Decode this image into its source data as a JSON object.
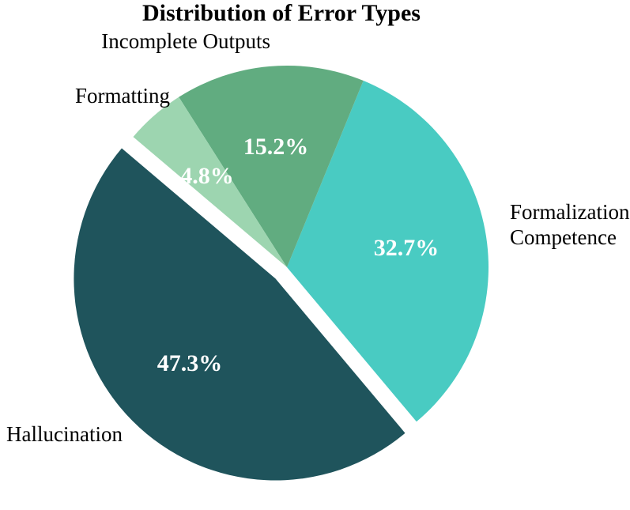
{
  "chart_data": {
    "type": "pie",
    "title": "Distribution of Error Types",
    "direction": "counterclockwise",
    "start_angle_deg": -50,
    "pct_distance": 0.6,
    "background_color": "#FFFFFF",
    "pct_text_color": "#FFFFFF",
    "label_text_color": "#000000",
    "slices": [
      {
        "label": "Formalization Competence",
        "value": 32.7,
        "pct_label": "32.7%",
        "color": "#49CBC2",
        "explode": 0
      },
      {
        "label": "Incomplete Outputs",
        "value": 15.2,
        "pct_label": "15.2%",
        "color": "#61AC80",
        "explode": 0
      },
      {
        "label": "Formatting",
        "value": 4.8,
        "pct_label": "4.8%",
        "color": "#9DD5B0",
        "explode": 0
      },
      {
        "label": "Hallucination",
        "value": 47.3,
        "pct_label": "47.3%",
        "color": "#1F545C",
        "explode": 0.08
      }
    ]
  }
}
